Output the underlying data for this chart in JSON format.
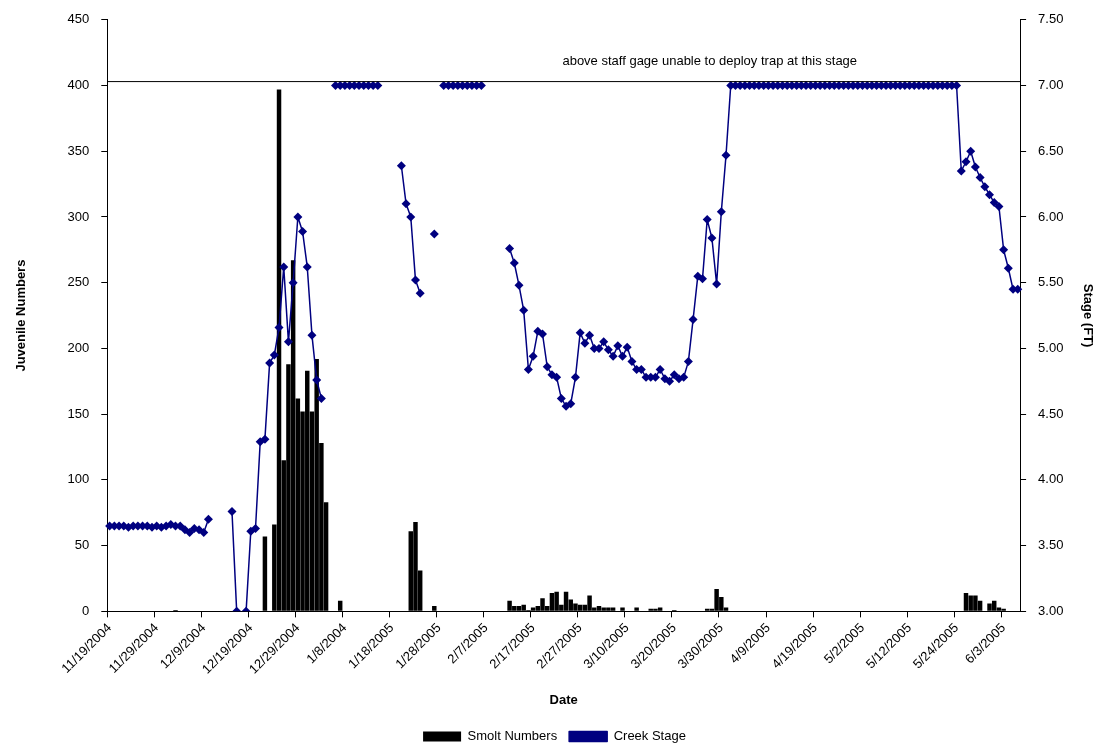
{
  "chart_data": {
    "type": "bar",
    "xlabel": "Date",
    "ylabel": "Juvenile Numbers",
    "y2label": "Stage (FT)",
    "categories": [
      "11/19/2004",
      null,
      null,
      null,
      null,
      null,
      null,
      null,
      null,
      null,
      "11/29/2004",
      null,
      null,
      null,
      null,
      null,
      null,
      null,
      null,
      null,
      "12/9/2004",
      null,
      null,
      null,
      null,
      null,
      null,
      null,
      null,
      null,
      "12/19/2004",
      null,
      null,
      null,
      null,
      null,
      null,
      null,
      null,
      null,
      "12/29/2004",
      null,
      null,
      null,
      null,
      null,
      null,
      null,
      null,
      null,
      "1/8/2004",
      null,
      null,
      null,
      null,
      null,
      null,
      null,
      null,
      null,
      "1/18/2005",
      null,
      null,
      null,
      null,
      null,
      null,
      null,
      null,
      null,
      "1/28/2005",
      null,
      null,
      null,
      null,
      null,
      null,
      null,
      null,
      null,
      "2/7/2005",
      null,
      null,
      null,
      null,
      null,
      null,
      null,
      null,
      null,
      "2/17/2005",
      null,
      null,
      null,
      null,
      null,
      null,
      null,
      null,
      null,
      "2/27/2005",
      null,
      null,
      null,
      null,
      null,
      null,
      null,
      null,
      null,
      "3/10/2005",
      null,
      null,
      null,
      null,
      null,
      null,
      null,
      null,
      null,
      "3/20/2005",
      null,
      null,
      null,
      null,
      null,
      null,
      null,
      null,
      null,
      "3/30/2005",
      null,
      null,
      null,
      null,
      null,
      null,
      null,
      null,
      null,
      "4/9/2005",
      null,
      null,
      null,
      null,
      null,
      null,
      null,
      null,
      null,
      "4/19/2005",
      null,
      null,
      null,
      null,
      null,
      null,
      null,
      null,
      null,
      "5/2/2005",
      null,
      null,
      null,
      null,
      null,
      null,
      null,
      null,
      null,
      "5/12/2005",
      null,
      null,
      null,
      null,
      null,
      null,
      null,
      null,
      null,
      "5/24/2005",
      null,
      null,
      null,
      null,
      null,
      null,
      null,
      null,
      null,
      "6/3/2005",
      null,
      null,
      null
    ],
    "series": [
      {
        "name": "Smolt Numbers",
        "color": "#000000",
        "values": [
          0,
          0,
          0,
          0,
          0,
          0,
          0,
          0,
          0,
          0,
          0,
          0,
          0,
          0,
          1,
          0,
          0,
          0,
          0,
          0,
          0,
          0,
          0,
          0,
          0,
          0,
          0,
          0,
          0,
          0,
          0,
          0,
          0,
          57,
          0,
          66,
          397,
          115,
          188,
          267,
          162,
          152,
          183,
          152,
          192,
          128,
          83,
          0,
          0,
          8,
          0,
          0,
          0,
          0,
          0,
          0,
          0,
          0,
          0,
          0,
          0,
          0,
          0,
          0,
          61,
          68,
          31,
          0,
          0,
          4,
          0,
          0,
          0,
          0,
          0,
          0,
          0,
          0,
          0,
          0,
          0,
          0,
          0,
          0,
          0,
          8,
          4,
          4,
          5,
          1,
          3,
          4,
          10,
          4,
          14,
          15,
          5,
          15,
          9,
          6,
          5,
          5,
          12,
          3,
          4,
          3,
          3,
          3,
          0,
          3,
          0,
          0,
          3,
          0,
          0,
          2,
          2,
          3,
          0,
          0,
          1,
          0,
          0,
          0,
          0,
          0,
          0,
          2,
          2,
          17,
          11,
          3,
          0,
          0,
          0,
          0,
          0,
          0,
          0,
          0,
          0,
          0,
          0,
          0,
          0,
          0,
          0,
          0,
          0,
          0,
          0,
          0,
          0,
          0,
          0,
          0,
          0,
          0,
          0,
          0,
          0,
          0,
          0,
          0,
          0,
          0,
          0,
          0,
          0,
          0,
          0,
          0,
          0,
          0,
          0,
          0,
          0,
          0,
          0,
          0,
          0,
          0,
          14,
          12,
          12,
          8,
          0,
          6,
          8,
          3,
          2,
          0,
          0,
          0
        ]
      },
      {
        "name": "Creek Stage",
        "type": "line",
        "axis": "y2",
        "color": "#000080",
        "values": [
          3.65,
          3.65,
          3.65,
          3.65,
          3.64,
          3.65,
          3.65,
          3.65,
          3.65,
          3.64,
          3.65,
          3.64,
          3.65,
          3.66,
          3.65,
          3.65,
          3.62,
          3.6,
          3.63,
          3.62,
          3.6,
          3.7,
          null,
          null,
          null,
          null,
          3.76,
          3.0,
          null,
          3.0,
          3.61,
          3.63,
          4.29,
          4.31,
          4.89,
          4.95,
          5.16,
          5.62,
          5.05,
          5.5,
          6.0,
          5.89,
          5.62,
          5.1,
          4.76,
          4.62,
          null,
          null,
          7.0,
          7.0,
          7.0,
          7.0,
          7.0,
          7.0,
          7.0,
          7.0,
          7.0,
          7.0,
          null,
          null,
          null,
          null,
          6.39,
          6.1,
          6.0,
          5.52,
          5.42,
          null,
          null,
          5.87,
          null,
          7.0,
          7.0,
          7.0,
          7.0,
          7.0,
          7.0,
          7.0,
          7.0,
          7.0,
          null,
          null,
          null,
          null,
          null,
          5.76,
          5.65,
          5.48,
          5.29,
          4.84,
          4.94,
          5.13,
          5.11,
          4.86,
          4.8,
          4.78,
          4.62,
          4.56,
          4.58,
          4.78,
          5.12,
          5.04,
          5.1,
          5.0,
          5.0,
          5.05,
          4.99,
          4.94,
          5.02,
          4.94,
          5.01,
          4.9,
          4.84,
          4.84,
          4.78,
          4.78,
          4.78,
          4.84,
          4.77,
          4.75,
          4.8,
          4.77,
          4.78,
          4.9,
          5.22,
          5.55,
          5.53,
          5.98,
          5.84,
          5.49,
          6.04,
          6.47,
          7.0,
          7.0,
          7.0,
          7.0,
          7.0,
          7.0,
          7.0,
          7.0,
          7.0,
          7.0,
          7.0,
          7.0,
          7.0,
          7.0,
          7.0,
          7.0,
          7.0,
          7.0,
          7.0,
          7.0,
          7.0,
          7.0,
          7.0,
          7.0,
          7.0,
          7.0,
          7.0,
          7.0,
          7.0,
          7.0,
          7.0,
          7.0,
          7.0,
          7.0,
          7.0,
          7.0,
          7.0,
          7.0,
          7.0,
          7.0,
          7.0,
          7.0,
          7.0,
          7.0,
          7.0,
          7.0,
          7.0,
          7.0,
          7.0,
          6.35,
          6.42,
          6.5,
          6.38,
          6.3,
          6.23,
          6.17,
          6.11,
          6.08,
          5.75,
          5.61,
          5.45,
          5.45
        ]
      }
    ],
    "ylim": [
      0,
      450
    ],
    "yticks": [
      0,
      50,
      100,
      150,
      200,
      250,
      300,
      350,
      400,
      450
    ],
    "y2lim": [
      3,
      7.5
    ],
    "y2ticks": [
      {
        "value": 3,
        "label": "3.00"
      },
      {
        "value": 3.5,
        "label": "3.50"
      },
      {
        "value": 4,
        "label": "4.00"
      },
      {
        "value": 4.5,
        "label": "4.50"
      },
      {
        "value": 5,
        "label": "5.00"
      },
      {
        "value": 5.5,
        "label": "5.50"
      },
      {
        "value": 6,
        "label": "6.00"
      },
      {
        "value": 6.5,
        "label": "6.50"
      },
      {
        "value": 7,
        "label": "7.00"
      },
      {
        "value": 7.5,
        "label": "7.50"
      }
    ],
    "ref_lines": [
      {
        "axis": "y2",
        "value": 7.03,
        "label": "above staff gage unable to deploy trap at this stage",
        "color": "#000000"
      }
    ],
    "grid": false,
    "legend": "bottom",
    "marker": "diamond"
  }
}
